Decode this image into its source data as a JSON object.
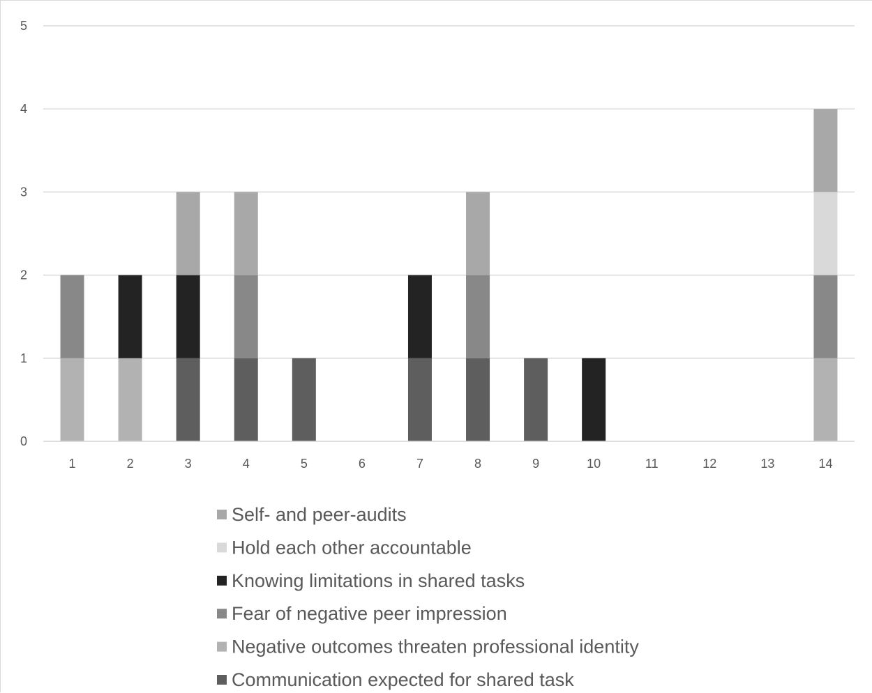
{
  "chart_data": {
    "type": "bar",
    "stacked": true,
    "categories": [
      "1",
      "2",
      "3",
      "4",
      "5",
      "6",
      "7",
      "8",
      "9",
      "10",
      "11",
      "12",
      "13",
      "14"
    ],
    "ylim": [
      0,
      5
    ],
    "y_ticks": [
      "0",
      "1",
      "2",
      "3",
      "4",
      "5"
    ],
    "grid": true,
    "legend_position": "bottom",
    "series": [
      {
        "name": "Communication expected for shared task",
        "color": "#5e5e5e",
        "values": [
          0,
          0,
          1,
          1,
          1,
          0,
          1,
          1,
          1,
          0,
          0,
          0,
          0,
          0
        ]
      },
      {
        "name": "Negative outcomes threaten professional identity",
        "color": "#b2b2b2",
        "values": [
          1,
          1,
          0,
          0,
          0,
          0,
          0,
          0,
          0,
          0,
          0,
          0,
          0,
          1
        ]
      },
      {
        "name": "Fear of negative peer impression",
        "color": "#888888",
        "values": [
          1,
          0,
          0,
          1,
          0,
          0,
          0,
          1,
          0,
          0,
          0,
          0,
          0,
          1
        ]
      },
      {
        "name": "Knowing limitations in shared tasks",
        "color": "#232323",
        "values": [
          0,
          1,
          1,
          0,
          0,
          0,
          1,
          0,
          0,
          1,
          0,
          0,
          0,
          0
        ]
      },
      {
        "name": "Hold each other accountable",
        "color": "#d9d9d9",
        "values": [
          0,
          0,
          0,
          0,
          0,
          0,
          0,
          0,
          0,
          0,
          0,
          0,
          0,
          1
        ]
      },
      {
        "name": "Self- and peer-audits",
        "color": "#a8a8a8",
        "values": [
          0,
          0,
          1,
          1,
          0,
          0,
          0,
          1,
          0,
          0,
          0,
          0,
          0,
          1
        ]
      }
    ],
    "legend_order": [
      "Self- and peer-audits",
      "Hold each other accountable",
      "Knowing limitations in shared tasks",
      "Fear of negative peer impression",
      "Negative outcomes threaten professional identity",
      "Communication expected for shared task"
    ]
  }
}
